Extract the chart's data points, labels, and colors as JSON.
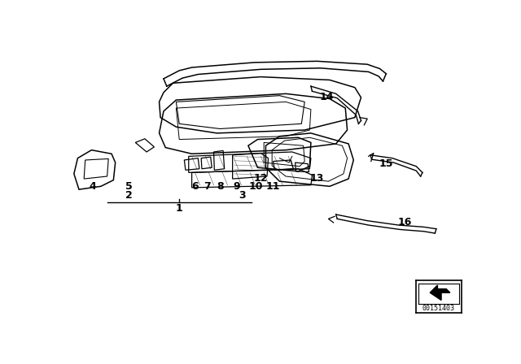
{
  "bg_color": "#ffffff",
  "line_color": "#000000",
  "part_number": "00151403",
  "figsize": [
    6.4,
    4.48
  ],
  "dpi": 100
}
